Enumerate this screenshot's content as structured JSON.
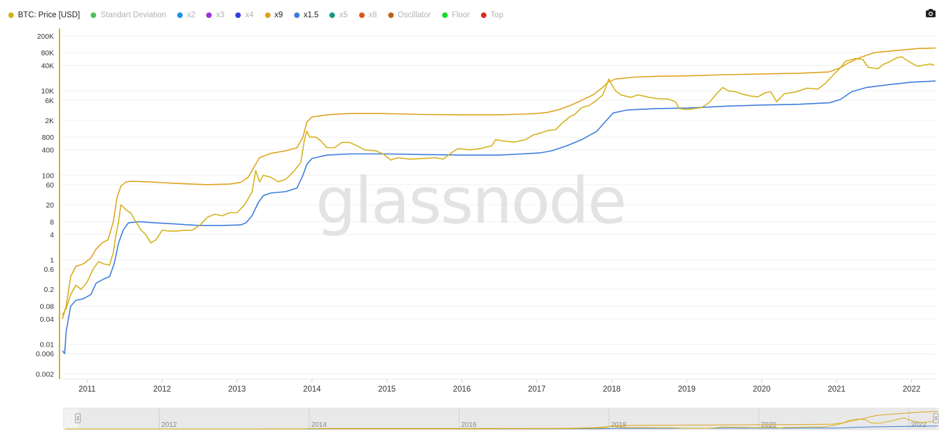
{
  "legend": [
    {
      "label": "BTC: Price [USD]",
      "color": "#d4b21c",
      "on": true
    },
    {
      "label": "Standart Deviation",
      "color": "#4ec25a",
      "on": false
    },
    {
      "label": "x2",
      "color": "#1e90e8",
      "on": false
    },
    {
      "label": "x3",
      "color": "#9b33d6",
      "on": false
    },
    {
      "label": "x4",
      "color": "#2f3fd8",
      "on": false
    },
    {
      "label": "x9",
      "color": "#e0a21e",
      "on": true
    },
    {
      "label": "x1.5",
      "color": "#3b7ddc",
      "on": true
    },
    {
      "label": "x5",
      "color": "#169a83",
      "on": false
    },
    {
      "label": "x8",
      "color": "#e0521e",
      "on": false
    },
    {
      "label": "Oscillator",
      "color": "#b8651a",
      "on": false
    },
    {
      "label": "Floor",
      "color": "#19d92a",
      "on": false
    },
    {
      "label": "Top",
      "color": "#e0281e",
      "on": false
    }
  ],
  "watermark": "glassnode",
  "camera_icon": "camera-icon",
  "chart_data": {
    "type": "line",
    "y_scale": "log",
    "ylim": [
      0.0015,
      300000
    ],
    "xlim": [
      2010.65,
      2022.32
    ],
    "grid": true,
    "y_ticks": [
      {
        "v": 200000,
        "label": "200K"
      },
      {
        "v": 80000,
        "label": "80K"
      },
      {
        "v": 40000,
        "label": "40K"
      },
      {
        "v": 10000,
        "label": "10K"
      },
      {
        "v": 6000,
        "label": "6K"
      },
      {
        "v": 2000,
        "label": "2K"
      },
      {
        "v": 800,
        "label": "800"
      },
      {
        "v": 400,
        "label": "400"
      },
      {
        "v": 100,
        "label": "100"
      },
      {
        "v": 60,
        "label": "60"
      },
      {
        "v": 20,
        "label": "20"
      },
      {
        "v": 8,
        "label": "8"
      },
      {
        "v": 4,
        "label": "4"
      },
      {
        "v": 1,
        "label": "1"
      },
      {
        "v": 0.6,
        "label": "0.6"
      },
      {
        "v": 0.2,
        "label": "0.2"
      },
      {
        "v": 0.08,
        "label": "0.08"
      },
      {
        "v": 0.04,
        "label": "0.04"
      },
      {
        "v": 0.01,
        "label": "0.01"
      },
      {
        "v": 0.006,
        "label": "0.006"
      },
      {
        "v": 0.002,
        "label": "0.002"
      }
    ],
    "x_ticks": [
      {
        "v": 2011,
        "label": "2011"
      },
      {
        "v": 2012,
        "label": "2012"
      },
      {
        "v": 2013,
        "label": "2013"
      },
      {
        "v": 2014,
        "label": "2014"
      },
      {
        "v": 2015,
        "label": "2015"
      },
      {
        "v": 2016,
        "label": "2016"
      },
      {
        "v": 2017,
        "label": "2017"
      },
      {
        "v": 2018,
        "label": "2018"
      },
      {
        "v": 2019,
        "label": "2019"
      },
      {
        "v": 2020,
        "label": "2020"
      },
      {
        "v": 2021,
        "label": "2021"
      },
      {
        "v": 2022,
        "label": "2022"
      }
    ],
    "navigator_ticks": [
      {
        "v": 2012,
        "label": "2012"
      },
      {
        "v": 2014,
        "label": "2014"
      },
      {
        "v": 2016,
        "label": "2016"
      },
      {
        "v": 2018,
        "label": "2018"
      },
      {
        "v": 2020,
        "label": "2020"
      },
      {
        "v": 2022,
        "label": "2022"
      }
    ],
    "series": [
      {
        "name": "BTC: Price [USD]",
        "color": "#d4b21c",
        "points": [
          [
            2010.67,
            0.05
          ],
          [
            2010.72,
            0.07
          ],
          [
            2010.78,
            0.15
          ],
          [
            2010.85,
            0.25
          ],
          [
            2010.92,
            0.2
          ],
          [
            2011.0,
            0.3
          ],
          [
            2011.08,
            0.6
          ],
          [
            2011.15,
            0.9
          ],
          [
            2011.22,
            0.8
          ],
          [
            2011.3,
            0.75
          ],
          [
            2011.35,
            1.5
          ],
          [
            2011.38,
            3.5
          ],
          [
            2011.42,
            8
          ],
          [
            2011.45,
            20
          ],
          [
            2011.48,
            18
          ],
          [
            2011.52,
            15
          ],
          [
            2011.58,
            13
          ],
          [
            2011.65,
            8
          ],
          [
            2011.72,
            5
          ],
          [
            2011.78,
            4
          ],
          [
            2011.85,
            2.5
          ],
          [
            2011.92,
            3
          ],
          [
            2012.0,
            5
          ],
          [
            2012.1,
            4.8
          ],
          [
            2012.2,
            4.8
          ],
          [
            2012.3,
            5
          ],
          [
            2012.4,
            5
          ],
          [
            2012.5,
            6.5
          ],
          [
            2012.6,
            10
          ],
          [
            2012.7,
            12
          ],
          [
            2012.8,
            11
          ],
          [
            2012.9,
            13
          ],
          [
            2013.0,
            13
          ],
          [
            2013.1,
            20
          ],
          [
            2013.2,
            40
          ],
          [
            2013.25,
            130
          ],
          [
            2013.3,
            70
          ],
          [
            2013.35,
            100
          ],
          [
            2013.45,
            90
          ],
          [
            2013.55,
            70
          ],
          [
            2013.65,
            80
          ],
          [
            2013.75,
            120
          ],
          [
            2013.85,
            200
          ],
          [
            2013.9,
            700
          ],
          [
            2013.93,
            1100
          ],
          [
            2013.97,
            800
          ],
          [
            2014.05,
            800
          ],
          [
            2014.12,
            650
          ],
          [
            2014.2,
            450
          ],
          [
            2014.3,
            450
          ],
          [
            2014.4,
            600
          ],
          [
            2014.5,
            600
          ],
          [
            2014.6,
            500
          ],
          [
            2014.7,
            400
          ],
          [
            2014.85,
            380
          ],
          [
            2014.95,
            320
          ],
          [
            2015.05,
            230
          ],
          [
            2015.15,
            260
          ],
          [
            2015.3,
            240
          ],
          [
            2015.5,
            250
          ],
          [
            2015.65,
            260
          ],
          [
            2015.75,
            240
          ],
          [
            2015.85,
            330
          ],
          [
            2015.95,
            430
          ],
          [
            2016.1,
            400
          ],
          [
            2016.25,
            430
          ],
          [
            2016.4,
            500
          ],
          [
            2016.45,
            700
          ],
          [
            2016.55,
            650
          ],
          [
            2016.7,
            610
          ],
          [
            2016.85,
            700
          ],
          [
            2016.95,
            900
          ],
          [
            2017.05,
            1000
          ],
          [
            2017.15,
            1150
          ],
          [
            2017.25,
            1200
          ],
          [
            2017.35,
            1800
          ],
          [
            2017.45,
            2500
          ],
          [
            2017.5,
            2700
          ],
          [
            2017.6,
            4000
          ],
          [
            2017.7,
            4500
          ],
          [
            2017.8,
            6000
          ],
          [
            2017.88,
            8000
          ],
          [
            2017.92,
            12000
          ],
          [
            2017.96,
            19000
          ],
          [
            2018.0,
            14000
          ],
          [
            2018.05,
            10000
          ],
          [
            2018.12,
            8000
          ],
          [
            2018.25,
            7000
          ],
          [
            2018.35,
            8000
          ],
          [
            2018.5,
            7000
          ],
          [
            2018.6,
            6500
          ],
          [
            2018.75,
            6400
          ],
          [
            2018.85,
            5500
          ],
          [
            2018.9,
            3800
          ],
          [
            2019.0,
            3600
          ],
          [
            2019.2,
            4000
          ],
          [
            2019.3,
            5300
          ],
          [
            2019.4,
            8500
          ],
          [
            2019.48,
            12000
          ],
          [
            2019.55,
            10000
          ],
          [
            2019.65,
            9500
          ],
          [
            2019.75,
            8300
          ],
          [
            2019.85,
            7500
          ],
          [
            2019.95,
            7200
          ],
          [
            2020.05,
            9000
          ],
          [
            2020.12,
            9500
          ],
          [
            2020.2,
            5500
          ],
          [
            2020.3,
            8500
          ],
          [
            2020.45,
            9300
          ],
          [
            2020.6,
            11500
          ],
          [
            2020.75,
            11000
          ],
          [
            2020.85,
            15000
          ],
          [
            2020.95,
            23000
          ],
          [
            2021.05,
            35000
          ],
          [
            2021.12,
            50000
          ],
          [
            2021.25,
            58000
          ],
          [
            2021.35,
            55000
          ],
          [
            2021.42,
            36000
          ],
          [
            2021.55,
            33000
          ],
          [
            2021.62,
            42000
          ],
          [
            2021.7,
            48000
          ],
          [
            2021.8,
            60000
          ],
          [
            2021.87,
            64000
          ],
          [
            2021.92,
            55000
          ],
          [
            2022.0,
            45000
          ],
          [
            2022.08,
            38000
          ],
          [
            2022.15,
            40000
          ],
          [
            2022.25,
            43000
          ],
          [
            2022.3,
            40000
          ]
        ]
      },
      {
        "name": "x9",
        "color": "#e0a21e",
        "points": [
          [
            2010.67,
            0.04
          ],
          [
            2010.72,
            0.08
          ],
          [
            2010.78,
            0.4
          ],
          [
            2010.85,
            0.7
          ],
          [
            2010.95,
            0.8
          ],
          [
            2011.05,
            1.1
          ],
          [
            2011.12,
            1.8
          ],
          [
            2011.2,
            2.5
          ],
          [
            2011.28,
            3
          ],
          [
            2011.35,
            8
          ],
          [
            2011.4,
            30
          ],
          [
            2011.45,
            55
          ],
          [
            2011.52,
            70
          ],
          [
            2011.6,
            72
          ],
          [
            2011.8,
            70
          ],
          [
            2012.0,
            67
          ],
          [
            2012.3,
            63
          ],
          [
            2012.6,
            60
          ],
          [
            2012.9,
            62
          ],
          [
            2013.05,
            68
          ],
          [
            2013.15,
            90
          ],
          [
            2013.22,
            150
          ],
          [
            2013.3,
            260
          ],
          [
            2013.45,
            330
          ],
          [
            2013.65,
            380
          ],
          [
            2013.8,
            450
          ],
          [
            2013.88,
            800
          ],
          [
            2013.93,
            1800
          ],
          [
            2014.0,
            2400
          ],
          [
            2014.2,
            2700
          ],
          [
            2014.5,
            2900
          ],
          [
            2014.9,
            2900
          ],
          [
            2015.5,
            2750
          ],
          [
            2016.0,
            2700
          ],
          [
            2016.5,
            2700
          ],
          [
            2016.8,
            2800
          ],
          [
            2017.0,
            2900
          ],
          [
            2017.15,
            3100
          ],
          [
            2017.3,
            3600
          ],
          [
            2017.45,
            4500
          ],
          [
            2017.6,
            6000
          ],
          [
            2017.75,
            8000
          ],
          [
            2017.88,
            12000
          ],
          [
            2017.95,
            16000
          ],
          [
            2018.05,
            19000
          ],
          [
            2018.3,
            21000
          ],
          [
            2018.6,
            22000
          ],
          [
            2019.0,
            22500
          ],
          [
            2019.5,
            24000
          ],
          [
            2020.0,
            25000
          ],
          [
            2020.5,
            26000
          ],
          [
            2020.9,
            28000
          ],
          [
            2021.05,
            35000
          ],
          [
            2021.15,
            45000
          ],
          [
            2021.3,
            60000
          ],
          [
            2021.5,
            80000
          ],
          [
            2021.8,
            90000
          ],
          [
            2022.1,
            100000
          ],
          [
            2022.32,
            103000
          ]
        ]
      },
      {
        "name": "x1.5",
        "color": "#3b7ddc",
        "points": [
          [
            2010.67,
            0.007
          ],
          [
            2010.7,
            0.006
          ],
          [
            2010.72,
            0.02
          ],
          [
            2010.78,
            0.08
          ],
          [
            2010.85,
            0.11
          ],
          [
            2010.95,
            0.12
          ],
          [
            2011.05,
            0.15
          ],
          [
            2011.12,
            0.28
          ],
          [
            2011.22,
            0.35
          ],
          [
            2011.3,
            0.4
          ],
          [
            2011.36,
            0.8
          ],
          [
            2011.42,
            2.5
          ],
          [
            2011.48,
            5
          ],
          [
            2011.55,
            7.5
          ],
          [
            2011.7,
            8
          ],
          [
            2011.9,
            7.5
          ],
          [
            2012.2,
            7
          ],
          [
            2012.5,
            6.5
          ],
          [
            2012.8,
            6.5
          ],
          [
            2013.05,
            6.7
          ],
          [
            2013.12,
            7.5
          ],
          [
            2013.2,
            11
          ],
          [
            2013.28,
            22
          ],
          [
            2013.35,
            33
          ],
          [
            2013.45,
            38
          ],
          [
            2013.65,
            41
          ],
          [
            2013.8,
            50
          ],
          [
            2013.88,
            100
          ],
          [
            2013.93,
            180
          ],
          [
            2014.0,
            250
          ],
          [
            2014.2,
            300
          ],
          [
            2014.5,
            320
          ],
          [
            2015.0,
            320
          ],
          [
            2015.5,
            310
          ],
          [
            2016.0,
            300
          ],
          [
            2016.5,
            300
          ],
          [
            2016.8,
            320
          ],
          [
            2017.05,
            340
          ],
          [
            2017.2,
            380
          ],
          [
            2017.4,
            500
          ],
          [
            2017.6,
            700
          ],
          [
            2017.8,
            1100
          ],
          [
            2017.93,
            2000
          ],
          [
            2018.02,
            3000
          ],
          [
            2018.2,
            3500
          ],
          [
            2018.6,
            3800
          ],
          [
            2019.0,
            3900
          ],
          [
            2019.5,
            4300
          ],
          [
            2020.0,
            4600
          ],
          [
            2020.5,
            4800
          ],
          [
            2020.9,
            5200
          ],
          [
            2021.05,
            6200
          ],
          [
            2021.2,
            9500
          ],
          [
            2021.4,
            12000
          ],
          [
            2021.7,
            14000
          ],
          [
            2022.0,
            16000
          ],
          [
            2022.32,
            17000
          ]
        ]
      }
    ]
  }
}
